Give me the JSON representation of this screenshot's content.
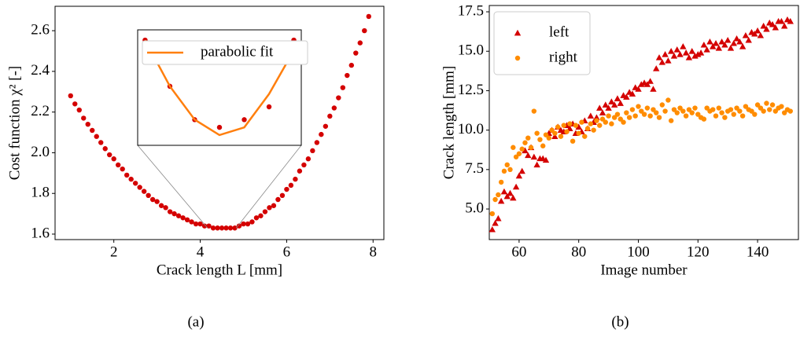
{
  "chart_data": [
    {
      "type": "scatter",
      "x_label": "Crack length L [mm]",
      "y_label": "Cost function χ² [-]",
      "caption": "(a)",
      "x": [
        1.0,
        1.1,
        1.2,
        1.3,
        1.4,
        1.5,
        1.6,
        1.7,
        1.8,
        1.9,
        2.0,
        2.1,
        2.2,
        2.3,
        2.4,
        2.5,
        2.6,
        2.7,
        2.8,
        2.9,
        3.0,
        3.1,
        3.2,
        3.3,
        3.4,
        3.5,
        3.6,
        3.7,
        3.8,
        3.9,
        4.0,
        4.1,
        4.2,
        4.3,
        4.4,
        4.5,
        4.6,
        4.7,
        4.8,
        4.9,
        5.0,
        5.1,
        5.2,
        5.3,
        5.4,
        5.5,
        5.6,
        5.7,
        5.8,
        5.9,
        6.0,
        6.1,
        6.2,
        6.3,
        6.4,
        6.5,
        6.6,
        6.7,
        6.8,
        6.9,
        7.0,
        7.1,
        7.2,
        7.3,
        7.4,
        7.5,
        7.6,
        7.7,
        7.8,
        7.9
      ],
      "series": [
        {
          "color": "#d40000",
          "marker": "circle",
          "values": [
            2.28,
            2.24,
            2.21,
            2.17,
            2.14,
            2.11,
            2.08,
            2.05,
            2.02,
            1.99,
            1.97,
            1.94,
            1.92,
            1.89,
            1.87,
            1.85,
            1.83,
            1.81,
            1.79,
            1.77,
            1.76,
            1.74,
            1.73,
            1.71,
            1.7,
            1.69,
            1.68,
            1.67,
            1.66,
            1.65,
            1.65,
            1.64,
            1.64,
            1.63,
            1.63,
            1.63,
            1.63,
            1.63,
            1.63,
            1.64,
            1.65,
            1.65,
            1.66,
            1.68,
            1.69,
            1.71,
            1.73,
            1.74,
            1.77,
            1.79,
            1.82,
            1.84,
            1.87,
            1.91,
            1.94,
            1.97,
            2.01,
            2.05,
            2.09,
            2.13,
            2.18,
            2.22,
            2.27,
            2.32,
            2.38,
            2.43,
            2.49,
            2.54,
            2.6,
            2.67
          ]
        }
      ],
      "xlim": [
        0.64,
        8.25
      ],
      "ylim": [
        1.573,
        2.72
      ],
      "xticks": [
        2,
        4,
        6,
        8
      ],
      "yticks": [
        1.6,
        1.8,
        {
          "value": 2,
          "label": "2.0"
        },
        2.2,
        2.4,
        2.6
      ],
      "grid": false,
      "inset": {
        "type": "scatter",
        "x": [
          4.2,
          4.3,
          4.4,
          4.5,
          4.6,
          4.7,
          4.8
        ],
        "xlim": [
          4.17,
          4.83
        ],
        "ylim": [
          1.6295,
          1.634
        ],
        "legend": "upper right",
        "series": [
          {
            "color": "#d40000",
            "marker": "circle",
            "values": [
              1.6336,
              1.6318,
              1.6305,
              1.6302,
              1.6305,
              1.631,
              1.6336
            ]
          },
          {
            "name": "parabolic fit",
            "color": "#ff7f0e",
            "style": "line",
            "values": [
              1.6336,
              1.6318,
              1.6305,
              1.6299,
              1.6302,
              1.6315,
              1.6332
            ]
          }
        ]
      }
    },
    {
      "type": "scatter",
      "x_label": "Image number",
      "y_label": "Crack length [mm]",
      "caption": "(b)",
      "legend": "upper left",
      "x": [
        51,
        52,
        53,
        54,
        55,
        56,
        57,
        58,
        59,
        60,
        61,
        62,
        63,
        64,
        65,
        66,
        67,
        68,
        69,
        70,
        71,
        72,
        73,
        74,
        75,
        76,
        77,
        78,
        79,
        80,
        81,
        82,
        83,
        84,
        85,
        86,
        87,
        88,
        89,
        90,
        91,
        92,
        93,
        94,
        95,
        96,
        97,
        98,
        99,
        100,
        101,
        102,
        103,
        104,
        105,
        106,
        107,
        108,
        109,
        110,
        111,
        112,
        113,
        114,
        115,
        116,
        117,
        118,
        119,
        120,
        121,
        122,
        123,
        124,
        125,
        126,
        127,
        128,
        129,
        130,
        131,
        132,
        133,
        134,
        135,
        136,
        137,
        138,
        139,
        140,
        141,
        142,
        143,
        144,
        145,
        146,
        147,
        148,
        149,
        150,
        151
      ],
      "series": [
        {
          "name": "left",
          "color": "#d40000",
          "marker": "triangle",
          "values": [
            3.7,
            4.1,
            4.4,
            5.5,
            6.1,
            5.8,
            6.0,
            5.7,
            6.4,
            7.1,
            7.4,
            8.7,
            8.4,
            8.9,
            8.3,
            7.8,
            8.2,
            8.2,
            8.1,
            9.8,
            10.0,
            9.6,
            10.2,
            10.0,
            9.9,
            10.3,
            10.1,
            10.4,
            9.8,
            10.2,
            9.9,
            10.6,
            10.1,
            10.9,
            10.5,
            10.8,
            11.4,
            11.1,
            11.6,
            11.4,
            11.8,
            11.6,
            12.0,
            11.7,
            12.2,
            12.1,
            12.4,
            12.3,
            12.7,
            12.6,
            12.9,
            13.0,
            12.9,
            13.1,
            12.6,
            13.9,
            14.6,
            14.3,
            14.8,
            14.4,
            15.0,
            14.7,
            15.1,
            14.8,
            15.3,
            14.9,
            14.6,
            15.0,
            14.7,
            14.8,
            14.9,
            15.4,
            15.1,
            15.6,
            15.3,
            15.5,
            15.2,
            15.6,
            15.4,
            15.7,
            15.2,
            15.5,
            15.8,
            15.6,
            15.3,
            16.0,
            15.7,
            16.2,
            16.1,
            16.3,
            16.0,
            16.6,
            16.4,
            16.8,
            16.7,
            16.5,
            16.9,
            16.9,
            16.6,
            17.0,
            16.9
          ]
        },
        {
          "name": "right",
          "color": "#ff8c00",
          "marker": "circle",
          "values": [
            4.7,
            5.6,
            5.9,
            6.7,
            7.4,
            7.8,
            7.5,
            8.9,
            8.3,
            8.5,
            8.8,
            9.2,
            9.5,
            8.9,
            11.2,
            9.8,
            9.4,
            9.0,
            9.7,
            9.5,
            10.0,
            9.8,
            10.2,
            9.6,
            10.3,
            9.9,
            10.4,
            9.3,
            10.3,
            9.8,
            10.5,
            9.6,
            10.1,
            10.4,
            10.0,
            10.6,
            10.3,
            10.7,
            10.5,
            10.9,
            10.4,
            10.8,
            11.0,
            10.7,
            10.5,
            11.1,
            10.8,
            11.3,
            10.9,
            11.5,
            11.2,
            11.0,
            11.4,
            10.9,
            11.3,
            11.1,
            10.8,
            11.6,
            11.2,
            11.9,
            10.6,
            11.3,
            11.1,
            11.4,
            11.2,
            10.9,
            11.3,
            11.1,
            11.4,
            11.0,
            10.8,
            10.7,
            11.4,
            11.2,
            11.3,
            10.9,
            11.4,
            11.1,
            10.8,
            11.2,
            11.3,
            11.0,
            11.4,
            11.2,
            10.9,
            11.5,
            11.3,
            11.2,
            11.0,
            11.6,
            11.4,
            11.2,
            11.7,
            11.3,
            11.6,
            11.2,
            11.4,
            11.5,
            11.1,
            11.3,
            11.2
          ]
        }
      ],
      "xlim": [
        50,
        153.7
      ],
      "ylim": [
        3.06,
        17.9
      ],
      "xticks": [
        60,
        80,
        100,
        120,
        140
      ],
      "yticks": [
        {
          "value": 5,
          "label": "5.0"
        },
        {
          "value": 7.5,
          "label": "7.5"
        },
        {
          "value": 10,
          "label": "10.0"
        },
        {
          "value": 12.5,
          "label": "12.5"
        },
        {
          "value": 15,
          "label": "15.0"
        },
        {
          "value": 17.5,
          "label": "17.5"
        }
      ],
      "grid": false
    }
  ]
}
